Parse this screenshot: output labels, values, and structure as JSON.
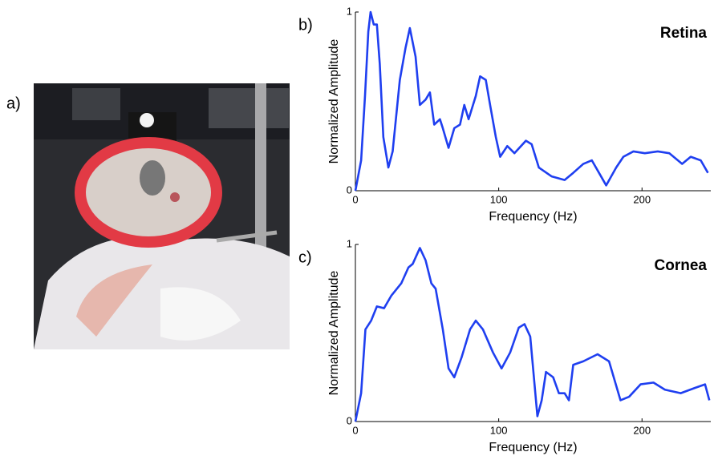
{
  "photo": {
    "label": "a)"
  },
  "chart_data": [
    {
      "type": "line",
      "label": "b)",
      "title": "Retina",
      "xlabel": "Frequency (Hz)",
      "ylabel": "Normalized Amplitude",
      "xlim": [
        0,
        248
      ],
      "ylim": [
        0,
        1
      ],
      "xticks": [
        0,
        100,
        200
      ],
      "yticks": [
        0,
        1
      ],
      "series": [
        {
          "color": "#1f3ff0",
          "x": [
            0,
            4,
            6.7,
            9,
            10.6,
            12.8,
            15,
            17,
            19.5,
            23,
            26,
            31,
            35,
            38,
            42,
            45,
            49,
            52,
            55,
            59,
            61,
            65,
            69,
            73,
            76,
            79,
            84,
            87,
            91,
            94,
            98,
            101,
            106,
            111,
            119,
            123,
            128,
            137,
            146,
            152,
            159,
            165,
            170,
            175,
            182,
            187,
            194,
            202,
            211,
            219,
            228,
            234,
            241,
            246
          ],
          "values": [
            0,
            0.17,
            0.53,
            0.89,
            1.0,
            0.93,
            0.93,
            0.71,
            0.3,
            0.13,
            0.22,
            0.62,
            0.8,
            0.91,
            0.75,
            0.48,
            0.51,
            0.55,
            0.37,
            0.4,
            0.35,
            0.24,
            0.35,
            0.37,
            0.48,
            0.4,
            0.53,
            0.64,
            0.62,
            0.48,
            0.3,
            0.19,
            0.25,
            0.21,
            0.28,
            0.26,
            0.13,
            0.08,
            0.06,
            0.1,
            0.15,
            0.17,
            0.1,
            0.03,
            0.13,
            0.19,
            0.22,
            0.21,
            0.22,
            0.21,
            0.15,
            0.19,
            0.17,
            0.1
          ]
        }
      ]
    },
    {
      "type": "line",
      "label": "c)",
      "title": "Cornea",
      "xlabel": "Frequency (Hz)",
      "ylabel": "Normalized Amplitude",
      "xlim": [
        0,
        248
      ],
      "ylim": [
        0,
        1
      ],
      "xticks": [
        0,
        100,
        200
      ],
      "yticks": [
        0,
        1
      ],
      "series": [
        {
          "color": "#1f3ff0",
          "x": [
            0,
            4,
            7,
            11,
            15,
            20,
            25,
            32,
            37,
            40,
            45,
            49,
            53,
            56,
            61,
            65,
            69,
            74,
            80,
            84,
            89,
            96,
            102,
            108,
            114,
            118,
            122,
            125,
            127,
            130,
            133,
            138,
            142,
            146,
            149,
            152,
            159,
            169,
            177,
            185,
            191,
            199,
            208,
            216,
            227,
            237,
            244,
            247
          ],
          "values": [
            0,
            0.16,
            0.52,
            0.57,
            0.65,
            0.64,
            0.71,
            0.78,
            0.87,
            0.89,
            0.98,
            0.91,
            0.78,
            0.75,
            0.52,
            0.3,
            0.25,
            0.36,
            0.52,
            0.57,
            0.52,
            0.39,
            0.3,
            0.39,
            0.53,
            0.55,
            0.48,
            0.21,
            0.03,
            0.12,
            0.28,
            0.25,
            0.16,
            0.16,
            0.12,
            0.32,
            0.34,
            0.38,
            0.34,
            0.12,
            0.14,
            0.21,
            0.22,
            0.18,
            0.16,
            0.19,
            0.21,
            0.12
          ]
        }
      ]
    }
  ]
}
